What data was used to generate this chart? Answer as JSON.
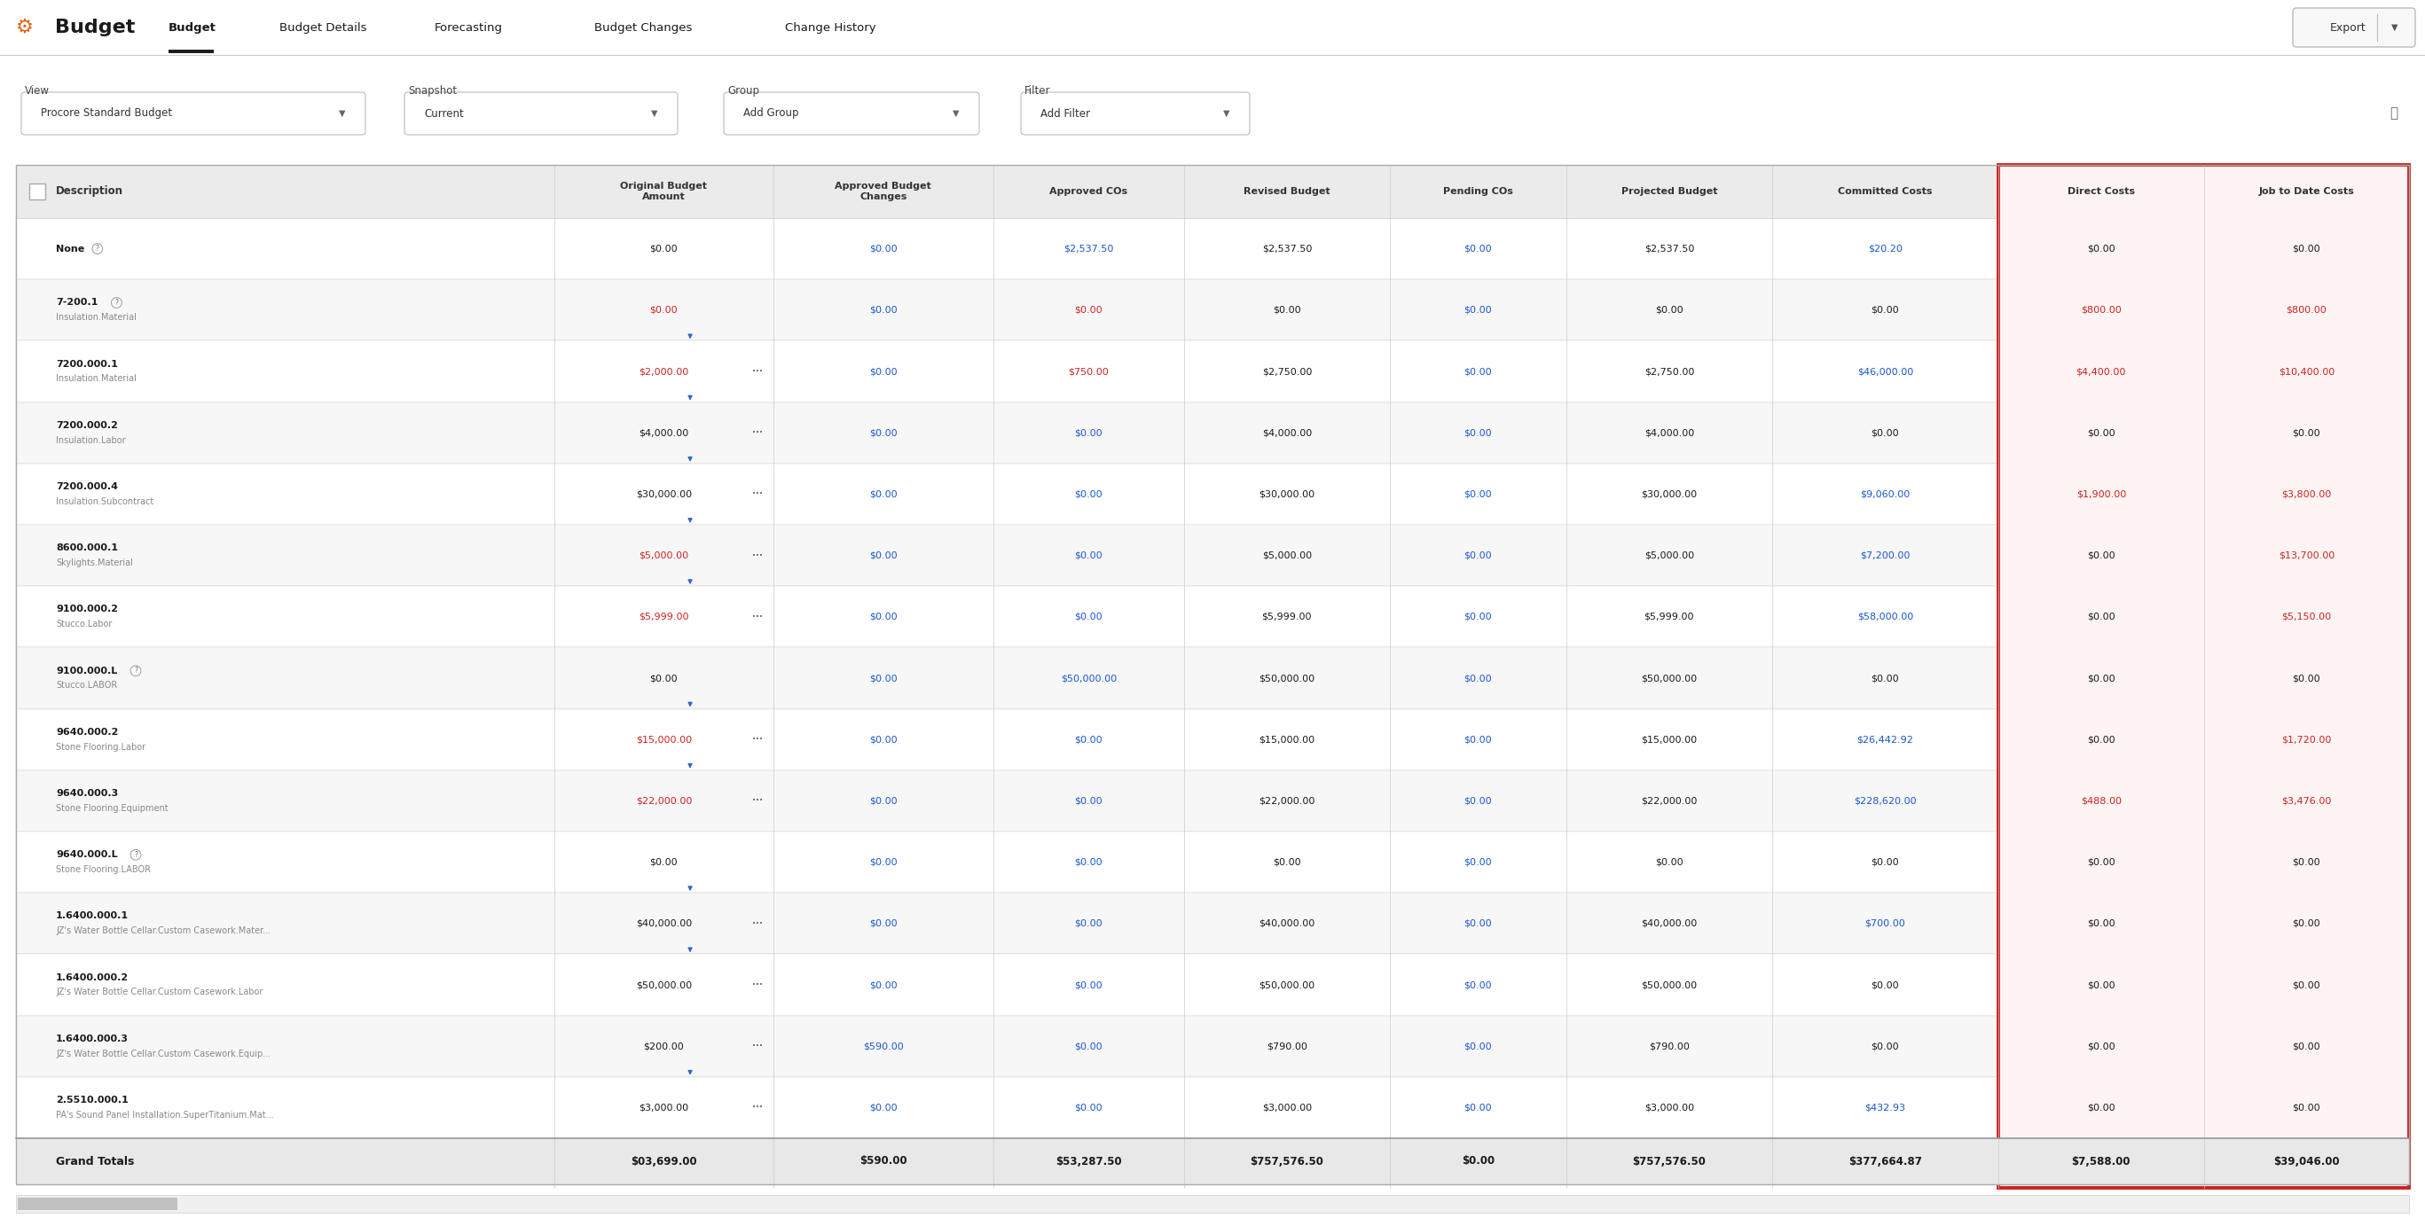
{
  "title": "Budget",
  "nav_items": [
    "Budget",
    "Budget Details",
    "Forecasting",
    "Budget Changes",
    "Change History"
  ],
  "active_nav": "Budget",
  "view_label": "View",
  "view_value": "Procore Standard Budget",
  "snapshot_label": "Snapshot",
  "snapshot_value": "Current",
  "group_label": "Group",
  "group_value": "Add Group",
  "filter_label": "Filter",
  "filter_value": "Add Filter",
  "columns": [
    "Description",
    "Original Budget\nAmount",
    "Approved Budget\nChanges",
    "Approved COs",
    "Revised Budget",
    "Pending COs",
    "Projected Budget",
    "Committed Costs",
    "Direct Costs",
    "Job to Date Costs"
  ],
  "rows": [
    {
      "desc1": "None",
      "desc2": "",
      "has_question": true,
      "original_budget": "$0.00",
      "ob_color": "black",
      "approved_changes": "$0.00",
      "ac_color": "blue",
      "approved_cos": "$2,537.50",
      "acos_color": "blue",
      "revised_budget": "$2,537.50",
      "rb_color": "black",
      "pending_cos": "$0.00",
      "pc_color": "blue",
      "projected_budget": "$2,537.50",
      "pb_color": "black",
      "committed_costs": "$20.20",
      "cc_color": "blue",
      "direct_costs": "$0.00",
      "dc_color": "black",
      "job_to_date": "$0.00",
      "jd_color": "black",
      "has_arrow": false,
      "shade": false
    },
    {
      "desc1": "7-200.1",
      "desc2": "Insulation.Material",
      "has_question": true,
      "original_budget": "$0.00",
      "ob_color": "red",
      "approved_changes": "$0.00",
      "ac_color": "blue",
      "approved_cos": "$0.00",
      "acos_color": "red",
      "revised_budget": "$0.00",
      "rb_color": "black",
      "pending_cos": "$0.00",
      "pc_color": "blue",
      "projected_budget": "$0.00",
      "pb_color": "black",
      "committed_costs": "$0.00",
      "cc_color": "black",
      "direct_costs": "$800.00",
      "dc_color": "red",
      "job_to_date": "$800.00",
      "jd_color": "red",
      "has_arrow": false,
      "shade": true
    },
    {
      "desc1": "7200.000.1",
      "desc2": "Insulation.Material",
      "has_question": false,
      "original_budget": "$2,000.00",
      "ob_color": "red",
      "approved_changes": "$0.00",
      "ac_color": "blue",
      "approved_cos": "$750.00",
      "acos_color": "red",
      "revised_budget": "$2,750.00",
      "rb_color": "black",
      "pending_cos": "$0.00",
      "pc_color": "blue",
      "projected_budget": "$2,750.00",
      "pb_color": "black",
      "committed_costs": "$46,000.00",
      "cc_color": "blue",
      "direct_costs": "$4,400.00",
      "dc_color": "red",
      "job_to_date": "$10,400.00",
      "jd_color": "red",
      "has_arrow": true,
      "shade": false
    },
    {
      "desc1": "7200.000.2",
      "desc2": "Insulation.Labor",
      "has_question": false,
      "original_budget": "$4,000.00",
      "ob_color": "black",
      "approved_changes": "$0.00",
      "ac_color": "blue",
      "approved_cos": "$0.00",
      "acos_color": "blue",
      "revised_budget": "$4,000.00",
      "rb_color": "black",
      "pending_cos": "$0.00",
      "pc_color": "blue",
      "projected_budget": "$4,000.00",
      "pb_color": "black",
      "committed_costs": "$0.00",
      "cc_color": "black",
      "direct_costs": "$0.00",
      "dc_color": "black",
      "job_to_date": "$0.00",
      "jd_color": "black",
      "has_arrow": true,
      "shade": true
    },
    {
      "desc1": "7200.000.4",
      "desc2": "Insulation.Subcontract",
      "has_question": false,
      "original_budget": "$30,000.00",
      "ob_color": "black",
      "approved_changes": "$0.00",
      "ac_color": "blue",
      "approved_cos": "$0.00",
      "acos_color": "blue",
      "revised_budget": "$30,000.00",
      "rb_color": "black",
      "pending_cos": "$0.00",
      "pc_color": "blue",
      "projected_budget": "$30,000.00",
      "pb_color": "black",
      "committed_costs": "$9,060.00",
      "cc_color": "blue",
      "direct_costs": "$1,900.00",
      "dc_color": "red",
      "job_to_date": "$3,800.00",
      "jd_color": "red",
      "has_arrow": true,
      "shade": false
    },
    {
      "desc1": "8600.000.1",
      "desc2": "Skylights.Material",
      "has_question": false,
      "original_budget": "$5,000.00",
      "ob_color": "red",
      "approved_changes": "$0.00",
      "ac_color": "blue",
      "approved_cos": "$0.00",
      "acos_color": "blue",
      "revised_budget": "$5,000.00",
      "rb_color": "black",
      "pending_cos": "$0.00",
      "pc_color": "blue",
      "projected_budget": "$5,000.00",
      "pb_color": "black",
      "committed_costs": "$7,200.00",
      "cc_color": "blue",
      "direct_costs": "$0.00",
      "dc_color": "black",
      "job_to_date": "$13,700.00",
      "jd_color": "red",
      "has_arrow": true,
      "shade": true
    },
    {
      "desc1": "9100.000.2",
      "desc2": "Stucco.Labor",
      "has_question": false,
      "original_budget": "$5,999.00",
      "ob_color": "red",
      "approved_changes": "$0.00",
      "ac_color": "blue",
      "approved_cos": "$0.00",
      "acos_color": "blue",
      "revised_budget": "$5,999.00",
      "rb_color": "black",
      "pending_cos": "$0.00",
      "pc_color": "blue",
      "projected_budget": "$5,999.00",
      "pb_color": "black",
      "committed_costs": "$58,000.00",
      "cc_color": "blue",
      "direct_costs": "$0.00",
      "dc_color": "black",
      "job_to_date": "$5,150.00",
      "jd_color": "red",
      "has_arrow": true,
      "shade": false
    },
    {
      "desc1": "9100.000.L",
      "desc2": "Stucco.LABOR",
      "has_question": true,
      "original_budget": "$0.00",
      "ob_color": "black",
      "approved_changes": "$0.00",
      "ac_color": "blue",
      "approved_cos": "$50,000.00",
      "acos_color": "blue",
      "revised_budget": "$50,000.00",
      "rb_color": "black",
      "pending_cos": "$0.00",
      "pc_color": "blue",
      "projected_budget": "$50,000.00",
      "pb_color": "black",
      "committed_costs": "$0.00",
      "cc_color": "black",
      "direct_costs": "$0.00",
      "dc_color": "black",
      "job_to_date": "$0.00",
      "jd_color": "black",
      "has_arrow": false,
      "shade": true
    },
    {
      "desc1": "9640.000.2",
      "desc2": "Stone Flooring.Labor",
      "has_question": false,
      "original_budget": "$15,000.00",
      "ob_color": "red",
      "approved_changes": "$0.00",
      "ac_color": "blue",
      "approved_cos": "$0.00",
      "acos_color": "blue",
      "revised_budget": "$15,000.00",
      "rb_color": "black",
      "pending_cos": "$0.00",
      "pc_color": "blue",
      "projected_budget": "$15,000.00",
      "pb_color": "black",
      "committed_costs": "$26,442.92",
      "cc_color": "blue",
      "direct_costs": "$0.00",
      "dc_color": "black",
      "job_to_date": "$1,720.00",
      "jd_color": "red",
      "has_arrow": true,
      "shade": false
    },
    {
      "desc1": "9640.000.3",
      "desc2": "Stone Flooring.Equipment",
      "has_question": false,
      "original_budget": "$22,000.00",
      "ob_color": "red",
      "approved_changes": "$0.00",
      "ac_color": "blue",
      "approved_cos": "$0.00",
      "acos_color": "blue",
      "revised_budget": "$22,000.00",
      "rb_color": "black",
      "pending_cos": "$0.00",
      "pc_color": "blue",
      "projected_budget": "$22,000.00",
      "pb_color": "black",
      "committed_costs": "$228,620.00",
      "cc_color": "blue",
      "direct_costs": "$488.00",
      "dc_color": "red",
      "job_to_date": "$3,476.00",
      "jd_color": "red",
      "has_arrow": true,
      "shade": true
    },
    {
      "desc1": "9640.000.L",
      "desc2": "Stone Flooring.LABOR",
      "has_question": true,
      "original_budget": "$0.00",
      "ob_color": "black",
      "approved_changes": "$0.00",
      "ac_color": "blue",
      "approved_cos": "$0.00",
      "acos_color": "blue",
      "revised_budget": "$0.00",
      "rb_color": "black",
      "pending_cos": "$0.00",
      "pc_color": "blue",
      "projected_budget": "$0.00",
      "pb_color": "black",
      "committed_costs": "$0.00",
      "cc_color": "black",
      "direct_costs": "$0.00",
      "dc_color": "black",
      "job_to_date": "$0.00",
      "jd_color": "black",
      "has_arrow": false,
      "shade": false
    },
    {
      "desc1": "1.6400.000.1",
      "desc2": "JZ's Water Bottle Cellar.Custom Casework.Mater...",
      "has_question": false,
      "original_budget": "$40,000.00",
      "ob_color": "black",
      "approved_changes": "$0.00",
      "ac_color": "blue",
      "approved_cos": "$0.00",
      "acos_color": "blue",
      "revised_budget": "$40,000.00",
      "rb_color": "black",
      "pending_cos": "$0.00",
      "pc_color": "blue",
      "projected_budget": "$40,000.00",
      "pb_color": "black",
      "committed_costs": "$700.00",
      "cc_color": "blue",
      "direct_costs": "$0.00",
      "dc_color": "black",
      "job_to_date": "$0.00",
      "jd_color": "black",
      "has_arrow": true,
      "shade": true
    },
    {
      "desc1": "1.6400.000.2",
      "desc2": "JZ's Water Bottle Cellar.Custom Casework.Labor",
      "has_question": false,
      "original_budget": "$50,000.00",
      "ob_color": "black",
      "approved_changes": "$0.00",
      "ac_color": "blue",
      "approved_cos": "$0.00",
      "acos_color": "blue",
      "revised_budget": "$50,000.00",
      "rb_color": "black",
      "pending_cos": "$0.00",
      "pc_color": "blue",
      "projected_budget": "$50,000.00",
      "pb_color": "black",
      "committed_costs": "$0.00",
      "cc_color": "black",
      "direct_costs": "$0.00",
      "dc_color": "black",
      "job_to_date": "$0.00",
      "jd_color": "black",
      "has_arrow": true,
      "shade": false
    },
    {
      "desc1": "1.6400.000.3",
      "desc2": "JZ's Water Bottle Cellar.Custom Casework.Equip...",
      "has_question": false,
      "original_budget": "$200.00",
      "ob_color": "black",
      "approved_changes": "$590.00",
      "ac_color": "blue",
      "approved_cos": "$0.00",
      "acos_color": "blue",
      "revised_budget": "$790.00",
      "rb_color": "black",
      "pending_cos": "$0.00",
      "pc_color": "blue",
      "projected_budget": "$790.00",
      "pb_color": "black",
      "committed_costs": "$0.00",
      "cc_color": "black",
      "direct_costs": "$0.00",
      "dc_color": "black",
      "job_to_date": "$0.00",
      "jd_color": "black",
      "has_arrow": false,
      "shade": true
    },
    {
      "desc1": "2.5510.000.1",
      "desc2": "PA's Sound Panel Installation.SuperTitanium.Mat...",
      "has_question": false,
      "original_budget": "$3,000.00",
      "ob_color": "black",
      "approved_changes": "$0.00",
      "ac_color": "blue",
      "approved_cos": "$0.00",
      "acos_color": "blue",
      "revised_budget": "$3,000.00",
      "rb_color": "black",
      "pending_cos": "$0.00",
      "pc_color": "blue",
      "projected_budget": "$3,000.00",
      "pb_color": "black",
      "committed_costs": "$432.93",
      "cc_color": "blue",
      "direct_costs": "$0.00",
      "dc_color": "black",
      "job_to_date": "$0.00",
      "jd_color": "black",
      "has_arrow": true,
      "shade": false
    }
  ],
  "footer": {
    "label": "Grand Totals",
    "original_budget": "$03,699.00",
    "approved_changes": "$590.00",
    "approved_cos": "$53,287.50",
    "revised_budget": "$757,576.50",
    "pending_cos": "$0.00",
    "projected_budget": "$757,576.50",
    "committed_costs": "$377,664.87",
    "direct_costs": "$7,588.00",
    "job_to_date": "$39,046.00"
  },
  "bg_color": "#ffffff",
  "header_bg": "#ebebeb",
  "shade_bg": "#f7f7f7",
  "footer_bg": "#e8e8e8",
  "border_color": "#cccccc",
  "red_border": "#cc2222",
  "blue": "#1a56cc",
  "red": "#cc2222",
  "black": "#1a1a1a",
  "gray": "#888888",
  "orange": "#e06010"
}
